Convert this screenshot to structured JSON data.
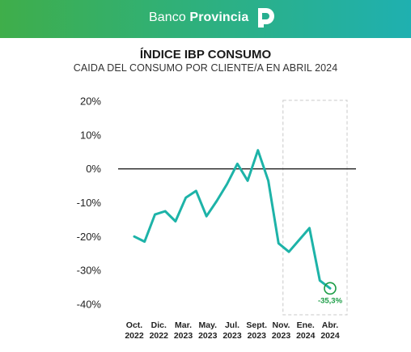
{
  "header": {
    "brand_light": "Banco",
    "brand_bold": "Provincia",
    "logo_icon": "banco-provincia-p-logo-icon",
    "gradient_start": "#3fae4a",
    "gradient_end": "#1fb0b0"
  },
  "chart_data": {
    "type": "line",
    "title": "ÍNDICE IBP CONSUMO",
    "subtitle": "CAIDA DEL CONSUMO POR CLIENTE/A EN ABRIL 2024",
    "xlabel": "",
    "ylabel": "",
    "ylim": [
      -40,
      20
    ],
    "y_ticks": [
      20,
      10,
      0,
      -10,
      -20,
      -30,
      -40
    ],
    "y_tick_labels": [
      "20%",
      "10%",
      "0%",
      "-10%",
      "-20%",
      "-30%",
      "-40%"
    ],
    "x_tick_labels": [
      {
        "month": "Oct.",
        "year": "2022"
      },
      {
        "month": "Dic.",
        "year": "2022"
      },
      {
        "month": "Mar.",
        "year": "2023"
      },
      {
        "month": "May.",
        "year": "2023"
      },
      {
        "month": "Jul.",
        "year": "2023"
      },
      {
        "month": "Sept.",
        "year": "2023"
      },
      {
        "month": "Nov.",
        "year": "2023"
      },
      {
        "month": "Ene.",
        "year": "2024"
      },
      {
        "month": "Abr.",
        "year": "2024"
      }
    ],
    "x": [
      "2022-09",
      "2022-10",
      "2022-11",
      "2022-12",
      "2023-01",
      "2023-02",
      "2023-03",
      "2023-04",
      "2023-05",
      "2023-06",
      "2023-07",
      "2023-08",
      "2023-09",
      "2023-10",
      "2023-11",
      "2023-12",
      "2024-01",
      "2024-02",
      "2024-03",
      "2024-04"
    ],
    "series": [
      {
        "values": [
          -20,
          -21.5,
          -13.5,
          -12.5,
          -15.5,
          -8.5,
          -6.5,
          -14,
          -9.5,
          -4.5,
          1.5,
          -3.5,
          5.5,
          -3.5,
          -22,
          -24.5,
          -21,
          -17.5,
          -33,
          -35.3
        ],
        "color": "#1db3a8"
      }
    ],
    "zero_line_color": "#222222",
    "highlight": {
      "label": "-35,3%",
      "color": "#1a9c45",
      "x": "2024-04",
      "value": -35.3,
      "box_from": "2024-01",
      "box_to": "2024-04"
    },
    "grid": false,
    "legend": "none"
  }
}
